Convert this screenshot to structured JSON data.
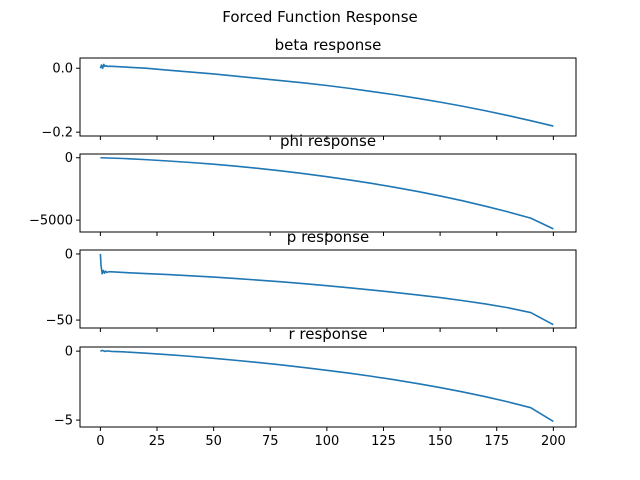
{
  "figure": {
    "suptitle": "Forced Function Response",
    "line_color": "#1f77b4"
  },
  "chart_data": [
    {
      "type": "line",
      "title": "beta response",
      "xlim": [
        -9,
        210
      ],
      "ylim": [
        -0.212,
        0.032
      ],
      "yticks": [
        0.0,
        -0.2
      ],
      "ytick_labels": [
        "0.0",
        "−0.2"
      ],
      "xticks": [
        0,
        25,
        50,
        75,
        100,
        125,
        150,
        175,
        200
      ],
      "xtick_labels": [],
      "series": [
        {
          "x": [
            0,
            0.5,
            1,
            1.5,
            2,
            2.5,
            3,
            4,
            5,
            10,
            20,
            30,
            40,
            50,
            60,
            70,
            80,
            90,
            100,
            110,
            120,
            130,
            140,
            150,
            160,
            170,
            180,
            190,
            200
          ],
          "y": [
            0.0,
            0.01,
            0.0,
            0.012,
            0.006,
            0.008,
            0.006,
            0.006,
            0.006,
            0.004,
            -0.0,
            -0.006,
            -0.012,
            -0.018,
            -0.025,
            -0.032,
            -0.039,
            -0.046,
            -0.054,
            -0.063,
            -0.073,
            -0.083,
            -0.094,
            -0.106,
            -0.119,
            -0.133,
            -0.148,
            -0.164,
            -0.181
          ]
        }
      ]
    },
    {
      "type": "line",
      "title": "phi response",
      "xlim": [
        -9,
        210
      ],
      "ylim": [
        -5950,
        300
      ],
      "yticks": [
        0,
        -5000
      ],
      "ytick_labels": [
        "0",
        "−5000"
      ],
      "xticks": [
        0,
        25,
        50,
        75,
        100,
        125,
        150,
        175,
        200
      ],
      "xtick_labels": [],
      "series": [
        {
          "x": [
            0,
            10,
            20,
            30,
            40,
            50,
            60,
            70,
            80,
            90,
            100,
            110,
            120,
            130,
            140,
            150,
            160,
            170,
            180,
            190,
            200
          ],
          "y": [
            0,
            -60,
            -150,
            -260,
            -380,
            -520,
            -680,
            -860,
            -1060,
            -1280,
            -1520,
            -1780,
            -2060,
            -2370,
            -2700,
            -3060,
            -3450,
            -3880,
            -4340,
            -4840,
            -5700
          ]
        }
      ]
    },
    {
      "type": "line",
      "title": "p response",
      "xlim": [
        -9,
        210
      ],
      "ylim": [
        -56,
        3
      ],
      "yticks": [
        0,
        -50
      ],
      "ytick_labels": [
        "0",
        "−50"
      ],
      "xticks": [
        0,
        25,
        50,
        75,
        100,
        125,
        150,
        175,
        200
      ],
      "xtick_labels": [],
      "series": [
        {
          "x": [
            0,
            0.3,
            0.8,
            1.3,
            1.8,
            2.3,
            2.8,
            3.5,
            5,
            10,
            20,
            30,
            40,
            50,
            60,
            70,
            80,
            90,
            100,
            110,
            120,
            130,
            140,
            150,
            160,
            170,
            180,
            190,
            200
          ],
          "y": [
            0.0,
            -9.0,
            -15.0,
            -12.5,
            -14.5,
            -13.0,
            -14.0,
            -13.5,
            -13.5,
            -14.0,
            -14.8,
            -15.6,
            -16.5,
            -17.5,
            -18.6,
            -19.8,
            -21.1,
            -22.5,
            -24.0,
            -25.6,
            -27.3,
            -29.1,
            -31.0,
            -33.0,
            -35.3,
            -37.8,
            -40.7,
            -44.3,
            -53.5
          ]
        }
      ]
    },
    {
      "type": "line",
      "title": "r response",
      "xlim": [
        -9,
        210
      ],
      "ylim": [
        -5.5,
        0.3
      ],
      "yticks": [
        0,
        -5
      ],
      "ytick_labels": [
        "0",
        "−5"
      ],
      "xticks": [
        0,
        25,
        50,
        75,
        100,
        125,
        150,
        175,
        200
      ],
      "xtick_labels": [
        "0",
        "25",
        "50",
        "75",
        "100",
        "125",
        "150",
        "175",
        "200"
      ],
      "series": [
        {
          "x": [
            0,
            1,
            2,
            3,
            5,
            10,
            20,
            30,
            40,
            50,
            60,
            70,
            80,
            90,
            100,
            110,
            120,
            130,
            140,
            150,
            160,
            170,
            180,
            190,
            200
          ],
          "y": [
            0.0,
            0.05,
            -0.02,
            0.02,
            -0.02,
            -0.05,
            -0.15,
            -0.26,
            -0.38,
            -0.52,
            -0.67,
            -0.83,
            -1.0,
            -1.19,
            -1.39,
            -1.6,
            -1.83,
            -2.08,
            -2.35,
            -2.64,
            -2.96,
            -3.3,
            -3.68,
            -4.1,
            -5.1
          ]
        }
      ]
    }
  ]
}
